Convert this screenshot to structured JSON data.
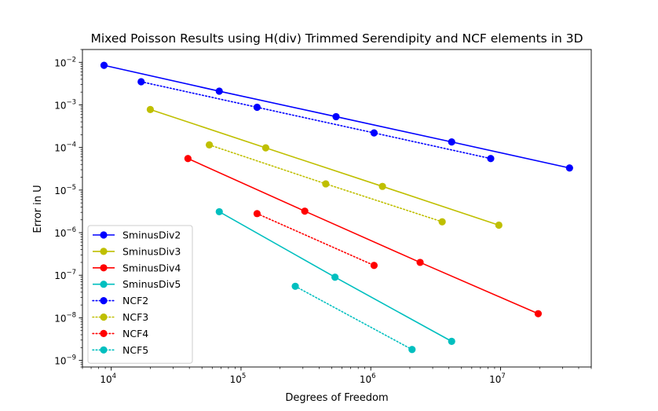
{
  "chart_data": {
    "type": "line",
    "title": "Mixed Poisson Results using H(div) Trimmed Serendipity and NCF elements in 3D",
    "xlabel": "Degrees of Freedom",
    "ylabel": "Error in U",
    "xscale": "log",
    "yscale": "log",
    "xlim": [
      6000,
      50000000
    ],
    "ylim": [
      7e-10,
      0.02
    ],
    "xticks": [
      {
        "value": 10000,
        "base": "10",
        "exp": "4"
      },
      {
        "value": 100000,
        "base": "10",
        "exp": "5"
      },
      {
        "value": 1000000,
        "base": "10",
        "exp": "6"
      },
      {
        "value": 10000000,
        "base": "10",
        "exp": "7"
      }
    ],
    "yticks": [
      {
        "value": 1e-09,
        "base": "10",
        "exp": "−9"
      },
      {
        "value": 1e-08,
        "base": "10",
        "exp": "−8"
      },
      {
        "value": 1e-07,
        "base": "10",
        "exp": "−7"
      },
      {
        "value": 1e-06,
        "base": "10",
        "exp": "−6"
      },
      {
        "value": 1e-05,
        "base": "10",
        "exp": "−5"
      },
      {
        "value": 0.0001,
        "base": "10",
        "exp": "−4"
      },
      {
        "value": 0.001,
        "base": "10",
        "exp": "−3"
      },
      {
        "value": 0.01,
        "base": "10",
        "exp": "−2"
      }
    ],
    "grid": false,
    "legend_position": "lower-left",
    "series": [
      {
        "name": "SminusDiv2",
        "color": "#0000ff",
        "linestyle": "solid",
        "x": [
          8800,
          68000,
          540000,
          4200000,
          34000000
        ],
        "y": [
          0.0085,
          0.0021,
          0.00053,
          0.000135,
          3.3e-05
        ]
      },
      {
        "name": "SminusDiv3",
        "color": "#bfbf00",
        "linestyle": "solid",
        "x": [
          20000,
          155000,
          1230000,
          9700000
        ],
        "y": [
          0.00078,
          9.8e-05,
          1.22e-05,
          1.5e-06
        ]
      },
      {
        "name": "SminusDiv4",
        "color": "#ff0000",
        "linestyle": "solid",
        "x": [
          39000,
          310000,
          2400000,
          19500000
        ],
        "y": [
          5.5e-05,
          3.2e-06,
          2e-07,
          1.25e-08
        ]
      },
      {
        "name": "SminusDiv5",
        "color": "#00bfbf",
        "linestyle": "solid",
        "x": [
          68000,
          530000,
          4200000
        ],
        "y": [
          3.1e-06,
          9e-08,
          2.8e-09
        ]
      },
      {
        "name": "NCF2",
        "color": "#0000ff",
        "linestyle": "dotted",
        "x": [
          17000,
          133000,
          1060000,
          8400000
        ],
        "y": [
          0.0035,
          0.00088,
          0.00022,
          5.5e-05
        ]
      },
      {
        "name": "NCF3",
        "color": "#bfbf00",
        "linestyle": "dotted",
        "x": [
          57000,
          450000,
          3550000
        ],
        "y": [
          0.000115,
          1.4e-05,
          1.8e-06
        ]
      },
      {
        "name": "NCF4",
        "color": "#ff0000",
        "linestyle": "dotted",
        "x": [
          133000,
          1060000
        ],
        "y": [
          2.8e-06,
          1.7e-07
        ]
      },
      {
        "name": "NCF5",
        "color": "#00bfbf",
        "linestyle": "dotted",
        "x": [
          262000,
          2080000
        ],
        "y": [
          5.5e-08,
          1.8e-09
        ]
      }
    ]
  }
}
